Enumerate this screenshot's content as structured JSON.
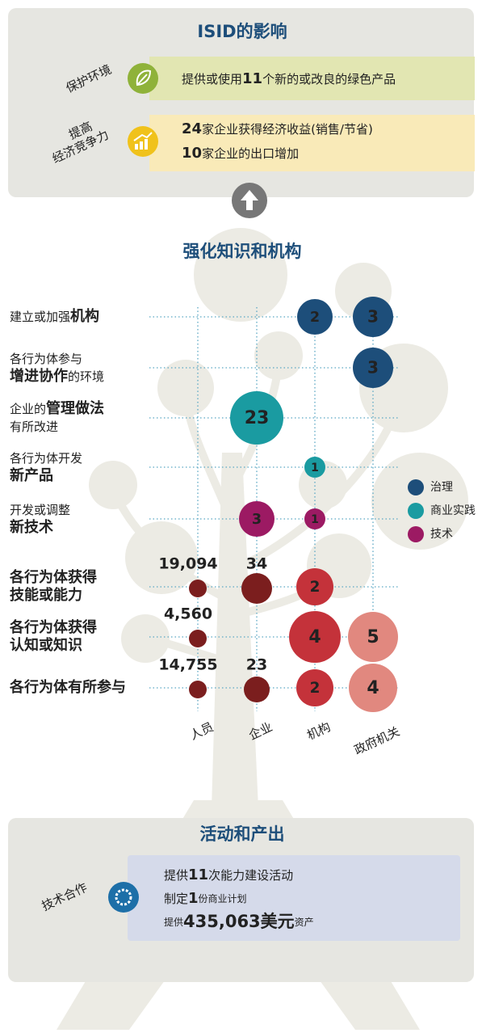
{
  "impact": {
    "title": "ISID的影响",
    "rows": [
      {
        "label": [
          "保护环境"
        ],
        "lines": [
          [
            {
              "text": "提供或使用"
            },
            {
              "text": "11",
              "bold": true
            },
            {
              "text": "个新的或改良的绿色产品"
            }
          ]
        ]
      },
      {
        "label": [
          "提高",
          "经济竞争力"
        ],
        "lines": [
          [
            {
              "text": "24",
              "bold": true
            },
            {
              "text": "家企业获得经济收益(销售/节省)"
            }
          ],
          [
            {
              "text": "10",
              "bold": true
            },
            {
              "text": "家企业的出口增加"
            }
          ]
        ]
      }
    ]
  },
  "knowledge": {
    "title": "强化知识和机构",
    "columns": [
      "人员",
      "企业",
      "机构",
      "政府机关"
    ],
    "legend": [
      {
        "name": "治理",
        "color": "#1d4e7a"
      },
      {
        "name": "商业实践",
        "color": "#1a9ba1"
      },
      {
        "name": "技术",
        "color": "#9c1a63"
      }
    ],
    "rows": [
      {
        "label": [
          [
            {
              "text": "建立或加强"
            },
            {
              "text": "机构",
              "bold": true
            }
          ]
        ],
        "cells": [
          null,
          null,
          {
            "value": 2,
            "color": "#1d4e7a"
          },
          {
            "value": 3,
            "color": "#1d4e7a"
          }
        ]
      },
      {
        "label": [
          [
            {
              "text": "各行为体参与"
            }
          ],
          [
            {
              "text": "增进协作",
              "bold": true
            },
            {
              "text": "的环境"
            }
          ]
        ],
        "cells": [
          null,
          null,
          null,
          {
            "value": 3,
            "color": "#1d4e7a"
          }
        ]
      },
      {
        "label": [
          [
            {
              "text": "企业的"
            },
            {
              "text": "管理做法",
              "bold": true
            }
          ],
          [
            {
              "text": "有所改进"
            }
          ]
        ],
        "cells": [
          null,
          {
            "value": 23,
            "color": "#1a9ba1"
          },
          null,
          null
        ]
      },
      {
        "label": [
          [
            {
              "text": "各行为体开发"
            }
          ],
          [
            {
              "text": "新产品",
              "bold": true
            }
          ]
        ],
        "cells": [
          null,
          null,
          {
            "value": 1,
            "color": "#1a9ba1"
          },
          null
        ]
      },
      {
        "label": [
          [
            {
              "text": "开发或调整"
            }
          ],
          [
            {
              "text": "新技术",
              "bold": true
            }
          ]
        ],
        "cells": [
          null,
          {
            "value": 3,
            "color": "#9c1a63"
          },
          {
            "value": 1,
            "color": "#9c1a63"
          },
          null
        ]
      },
      {
        "label": [
          [
            {
              "text": "各行为体获得",
              "bold": true
            }
          ],
          [
            {
              "text": "技能或能力",
              "bold": true
            }
          ]
        ],
        "cells": [
          {
            "value": {
              "value": 19094,
              "label": "19,094"
            },
            "color": "#7b1e1e"
          },
          {
            "value": 34,
            "color": "#7b1e1e"
          },
          {
            "value": 2,
            "color": "#c4323a"
          },
          null
        ]
      },
      {
        "label": [
          [
            {
              "text": "各行为体获得",
              "bold": true
            }
          ],
          [
            {
              "text": "认知或知识",
              "bold": true
            }
          ]
        ],
        "cells": [
          {
            "value": {
              "value": 4560,
              "label": "4,560"
            },
            "color": "#7b1e1e"
          },
          null,
          {
            "value": 4,
            "color": "#c4323a"
          },
          {
            "value": 5,
            "color": "#e1887f"
          }
        ]
      },
      {
        "label": [
          [
            {
              "text": "各行为体有所参与",
              "bold": true
            }
          ]
        ],
        "cells": [
          {
            "value": {
              "value": 14755,
              "label": "14,755"
            },
            "color": "#7b1e1e"
          },
          {
            "value": 23,
            "color": "#7b1e1e"
          },
          {
            "value": 2,
            "color": "#c4323a"
          },
          {
            "value": 4,
            "color": "#e1887f"
          }
        ]
      }
    ]
  },
  "activities": {
    "title": "活动和产出",
    "label": "技术合作",
    "lines": [
      [
        {
          "text": "提供"
        },
        {
          "text": "11",
          "bold": true
        },
        {
          "text": "次能力建设活动"
        }
      ],
      [
        {
          "text": "制定"
        },
        {
          "text": "1",
          "bold": true
        },
        {
          "text": "份商业计划",
          "small": true
        }
      ],
      [
        {
          "text": "提供",
          "small": true
        },
        {
          "text": "435,063美元",
          "bold": true,
          "large": true
        },
        {
          "text": "资产",
          "small": true
        }
      ]
    ]
  }
}
